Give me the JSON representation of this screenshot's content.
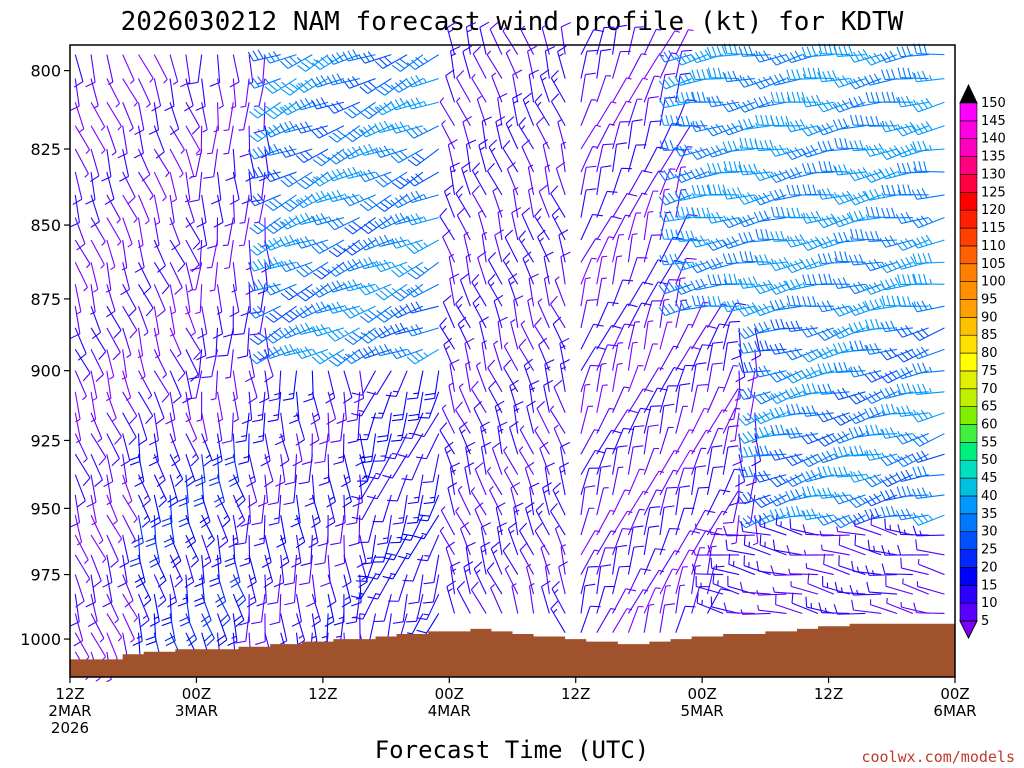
{
  "chart_data": {
    "type": "wind-barb-profile",
    "title": "2026030212 NAM forecast wind profile (kt) for KDTW",
    "xlabel": "Forecast Time (UTC)",
    "ylabel": "",
    "credit": "coolwx.com/models",
    "y_ticks": [
      800,
      825,
      850,
      875,
      900,
      925,
      950,
      975,
      1000
    ],
    "ylim": [
      1015,
      792
    ],
    "y_scale": "log-pressure",
    "x_range_hours": [
      0,
      84
    ],
    "x_ticks": [
      {
        "hour": 0,
        "lines": [
          "12Z",
          "2MAR",
          "2026"
        ]
      },
      {
        "hour": 12,
        "lines": [
          "00Z",
          "3MAR"
        ]
      },
      {
        "hour": 24,
        "lines": [
          "12Z"
        ]
      },
      {
        "hour": 36,
        "lines": [
          "00Z",
          "4MAR"
        ]
      },
      {
        "hour": 48,
        "lines": [
          "12Z"
        ]
      },
      {
        "hour": 60,
        "lines": [
          "00Z",
          "5MAR"
        ]
      },
      {
        "hour": 72,
        "lines": [
          "12Z"
        ]
      },
      {
        "hour": 84,
        "lines": [
          "00Z",
          "6MAR"
        ]
      }
    ],
    "colorbar": {
      "levels": [
        5,
        10,
        15,
        20,
        25,
        30,
        35,
        40,
        45,
        50,
        55,
        60,
        65,
        70,
        75,
        80,
        85,
        90,
        95,
        100,
        105,
        110,
        115,
        120,
        125,
        130,
        135,
        140,
        145,
        150
      ],
      "colors": [
        "#8000ff",
        "#5a00ff",
        "#2a00ff",
        "#0000ff",
        "#0028ff",
        "#0050ff",
        "#0078ff",
        "#0098ff",
        "#00c0e0",
        "#00e0c0",
        "#00f080",
        "#40f040",
        "#80f000",
        "#c0f000",
        "#e0f000",
        "#ffff00",
        "#ffe000",
        "#ffc000",
        "#ffa000",
        "#ff9000",
        "#ff8000",
        "#ff6000",
        "#ff4000",
        "#ff2000",
        "#ff0000",
        "#ff0040",
        "#ff0080",
        "#ff00c0",
        "#ff00e0",
        "#ff00ff"
      ],
      "top_color": "#000000"
    },
    "surface_fill": "#a0522d",
    "surface_pressure": [
      {
        "hour": 0,
        "p": 1008
      },
      {
        "hour": 3,
        "p": 1008
      },
      {
        "hour": 5,
        "p": 1006
      },
      {
        "hour": 7,
        "p": 1005
      },
      {
        "hour": 10,
        "p": 1004
      },
      {
        "hour": 14,
        "p": 1004
      },
      {
        "hour": 16,
        "p": 1003
      },
      {
        "hour": 19,
        "p": 1002
      },
      {
        "hour": 22,
        "p": 1001
      },
      {
        "hour": 25,
        "p": 1000
      },
      {
        "hour": 29,
        "p": 999
      },
      {
        "hour": 31,
        "p": 998
      },
      {
        "hour": 34,
        "p": 997
      },
      {
        "hour": 36,
        "p": 997
      },
      {
        "hour": 38,
        "p": 996
      },
      {
        "hour": 40,
        "p": 997
      },
      {
        "hour": 42,
        "p": 998
      },
      {
        "hour": 44,
        "p": 999
      },
      {
        "hour": 47,
        "p": 1000
      },
      {
        "hour": 49,
        "p": 1001
      },
      {
        "hour": 52,
        "p": 1002
      },
      {
        "hour": 55,
        "p": 1001
      },
      {
        "hour": 57,
        "p": 1000
      },
      {
        "hour": 59,
        "p": 999
      },
      {
        "hour": 62,
        "p": 998
      },
      {
        "hour": 66,
        "p": 997
      },
      {
        "hour": 69,
        "p": 996
      },
      {
        "hour": 71,
        "p": 995
      },
      {
        "hour": 74,
        "p": 994
      },
      {
        "hour": 80,
        "p": 994
      },
      {
        "hour": 84,
        "p": 994
      }
    ],
    "wind_regimes": [
      {
        "hours": [
          0,
          12
        ],
        "p": [
          792,
          1015
        ],
        "dir_deg": 160,
        "kt": 7
      },
      {
        "hours": [
          6,
          20
        ],
        "p": [
          920,
          1005
        ],
        "dir_deg": 165,
        "kt": 18
      },
      {
        "hours": [
          16,
          28
        ],
        "p": [
          880,
          1000
        ],
        "dir_deg": 175,
        "kt": 12
      },
      {
        "hours": [
          20,
          36
        ],
        "p": [
          792,
          895
        ],
        "dir_deg": 245,
        "kt": 33
      },
      {
        "hours": [
          28,
          36
        ],
        "p": [
          895,
          1000
        ],
        "dir_deg": 200,
        "kt": 14
      },
      {
        "hours": [
          36,
          48
        ],
        "p": [
          792,
          1000
        ],
        "dir_deg": 340,
        "kt": 10
      },
      {
        "hours": [
          48,
          62
        ],
        "p": [
          792,
          1000
        ],
        "dir_deg": 20,
        "kt": 8
      },
      {
        "hours": [
          58,
          84
        ],
        "p": [
          792,
          880
        ],
        "dir_deg": 260,
        "kt": 35
      },
      {
        "hours": [
          66,
          84
        ],
        "p": [
          880,
          955
        ],
        "dir_deg": 255,
        "kt": 33
      },
      {
        "hours": [
          62,
          84
        ],
        "p": [
          955,
          1000
        ],
        "dir_deg": 280,
        "kt": 10
      }
    ]
  }
}
